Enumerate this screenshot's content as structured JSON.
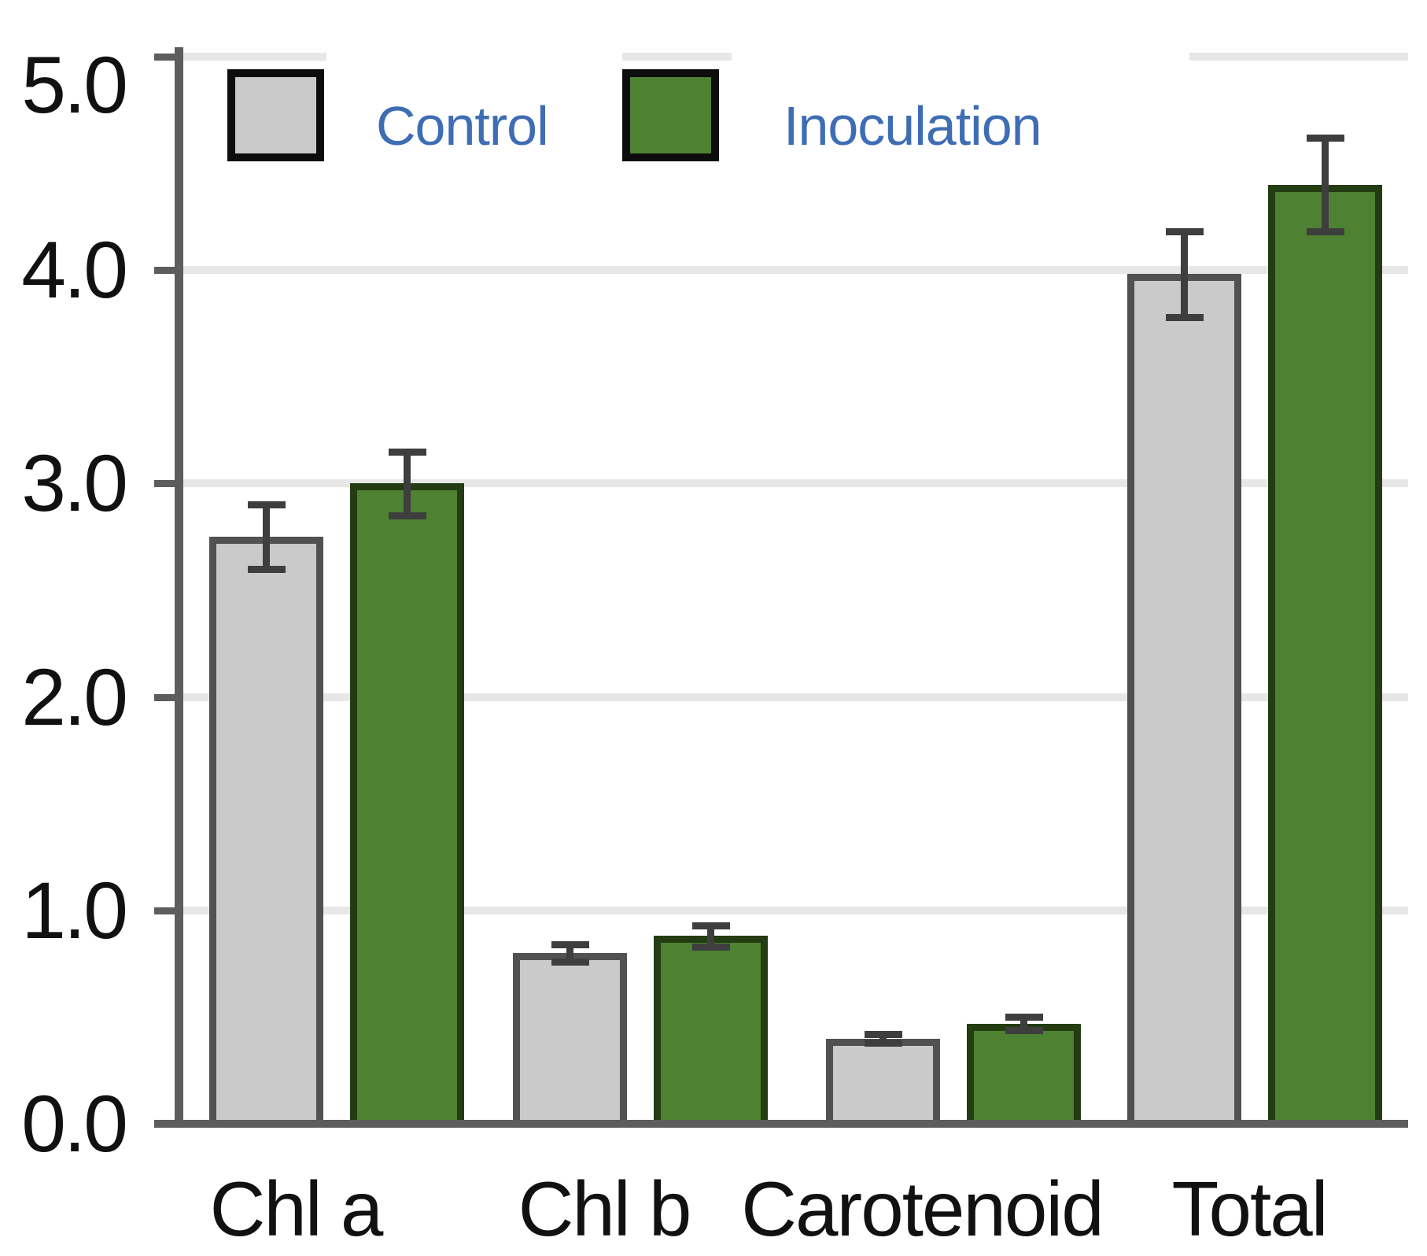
{
  "chart_data": {
    "type": "bar",
    "categories": [
      "Chl a",
      "Chl b",
      "Carotenoid",
      "Total"
    ],
    "series": [
      {
        "name": "Control",
        "values": [
          2.75,
          0.8,
          0.4,
          3.98
        ],
        "errors": [
          0.15,
          0.04,
          0.02,
          0.2
        ],
        "color": "#cacaca",
        "border_color": "#515151"
      },
      {
        "name": "Inoculation",
        "values": [
          3.0,
          0.88,
          0.47,
          4.4
        ],
        "errors": [
          0.15,
          0.05,
          0.03,
          0.22
        ],
        "color": "#4e8132",
        "border_color": "#233c12"
      }
    ],
    "ylim": [
      0.0,
      5.0
    ],
    "ytick_values": [
      5,
      4,
      3,
      2,
      1,
      0
    ],
    "ytick_labels": [
      "5.0",
      "4.0",
      "3.0",
      "2.0",
      "1.0",
      "0.0"
    ],
    "grid": "horizontal",
    "legend_position": "top",
    "error_bars": true
  },
  "colors": {
    "background": "#ffffff",
    "gridline": "#e7e7e7",
    "axis": "#5d5d5d",
    "error_bar": "#3e3e3e",
    "tick_label": "#111111",
    "legend_text": "#3f6db4",
    "legend_swatch_border": "#0d0d0d"
  }
}
